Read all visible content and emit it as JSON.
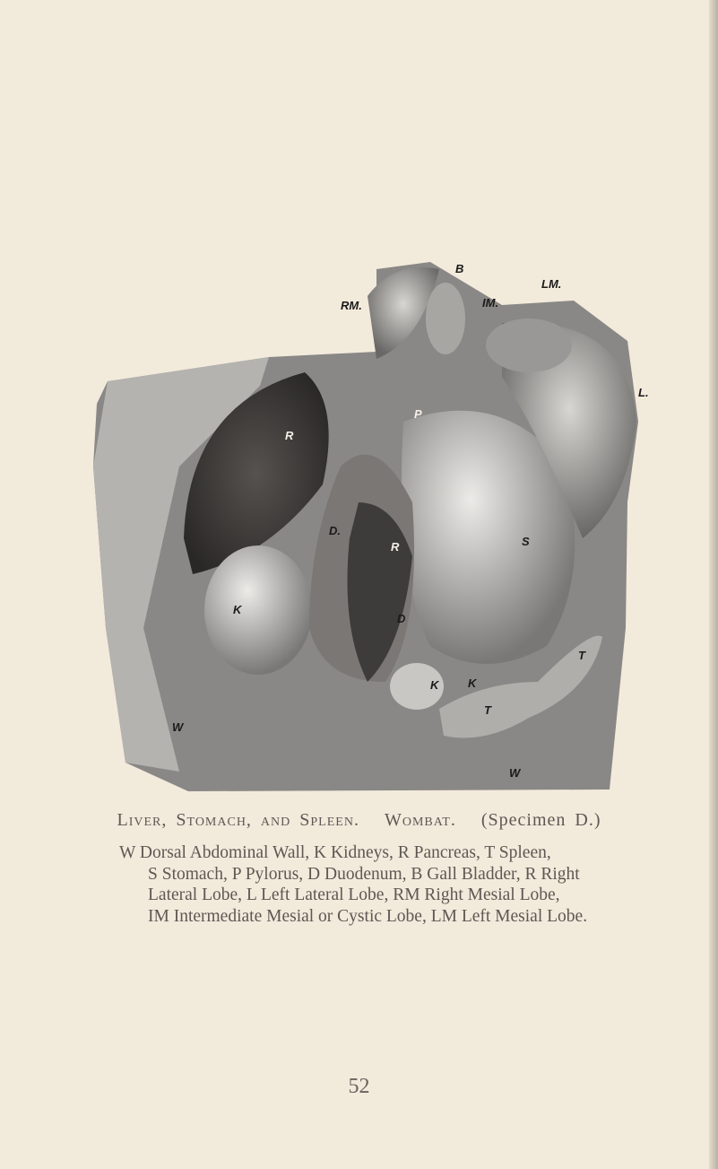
{
  "plate": {
    "labels": [
      "RM.",
      "B",
      "LM.",
      "IM.",
      "L.",
      "P",
      "R",
      "D.",
      "R",
      "S",
      "K",
      "D",
      "K",
      "K",
      "T",
      "T",
      "W",
      "W"
    ]
  },
  "caption": {
    "title": "Liver, Stomach, and Spleen.",
    "animal": "Wombat.",
    "specimen": "(Specimen D.)",
    "lines": [
      "W Dorsal Abdominal Wall, K Kidneys, R Pancreas, T Spleen,",
      "S Stomach, P Pylorus, D Duodenum, B Gall Bladder, R Right",
      "Lateral Lobe, L Left Lateral Lobe, RM Right Mesial Lobe,",
      "IM Intermediate Mesial or Cystic Lobe, LM Left Mesial Lobe."
    ]
  },
  "page_number": "52"
}
